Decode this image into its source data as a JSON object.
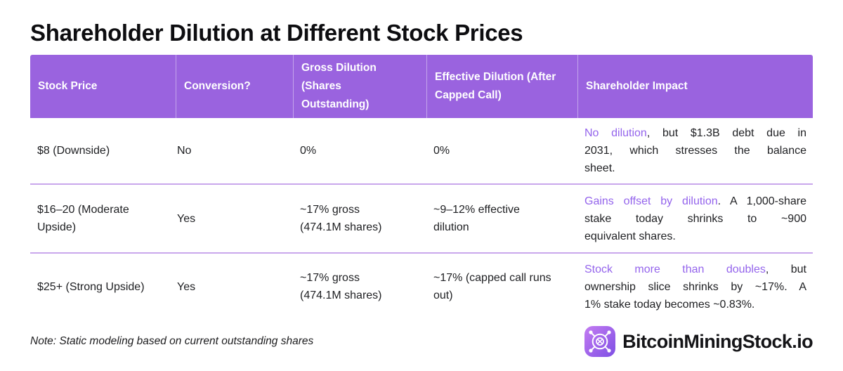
{
  "title": "Shareholder Dilution at Different Stock Prices",
  "theme": {
    "header_bg": "#9a63df",
    "accent_text": "#9464ec",
    "row_divider": "#c9a7ec",
    "logo_gradient_start": "#c47cf2",
    "logo_gradient_end": "#7e4fe4"
  },
  "table": {
    "columns": [
      {
        "label": "Stock Price"
      },
      {
        "label": "Conversion?"
      },
      {
        "label": "Gross Dilution\n(Shares\nOutstanding)"
      },
      {
        "label": "Effective Dilution (After\nCapped Call)"
      },
      {
        "label": "Shareholder Impact"
      }
    ],
    "rows": [
      {
        "stock_price": "$8 (Downside)",
        "conversion": "No",
        "gross_dilution": "0%",
        "effective_dilution": "0%",
        "impact": {
          "lead": "No dilution",
          "lines": [
            "No dilution, but $1.3B debt due in",
            "2031, which stresses the balance",
            "sheet."
          ]
        }
      },
      {
        "stock_price": "$16–20 (Moderate\nUpside)",
        "conversion": "Yes",
        "gross_dilution": "~17% gross\n(474.1M shares)",
        "effective_dilution": "~9–12% effective\ndilution",
        "impact": {
          "lead": "Gains offset by dilution",
          "lines": [
            "Gains offset by dilution. A 1,000-share",
            "stake today shrinks to ~900",
            "equivalent shares."
          ]
        }
      },
      {
        "stock_price": "$25+ (Strong Upside)",
        "conversion": "Yes",
        "gross_dilution": "~17% gross\n(474.1M shares)",
        "effective_dilution": "~17% (capped call runs\nout)",
        "impact": {
          "lead": "Stock more than doubles",
          "lines": [
            "Stock more than doubles, but",
            "ownership slice shrinks by ~17%. A",
            "1% stake today becomes ~0.83%."
          ]
        }
      }
    ]
  },
  "footer": {
    "note": "Note: Static modeling based on current outstanding shares",
    "brand": "BitcoinMiningStock.io",
    "logo_icon": "mining-fan-icon"
  },
  "chart_data": {
    "type": "table",
    "title": "Shareholder Dilution at Different Stock Prices",
    "columns": [
      "Stock Price",
      "Conversion?",
      "Gross Dilution (Shares Outstanding)",
      "Effective Dilution (After Capped Call)",
      "Shareholder Impact"
    ],
    "rows": [
      [
        "$8 (Downside)",
        "No",
        "0%",
        "0%",
        "No dilution, but $1.3B debt due in 2031, which stresses the balance sheet."
      ],
      [
        "$16–20 (Moderate Upside)",
        "Yes",
        "~17% gross (474.1M shares)",
        "~9–12% effective dilution",
        "Gains offset by dilution. A 1,000-share stake today shrinks to ~900 equivalent shares."
      ],
      [
        "$25+ (Strong Upside)",
        "Yes",
        "~17% gross (474.1M shares)",
        "~17% (capped call runs out)",
        "Stock more than doubles, but ownership slice shrinks by ~17%. A 1% stake today becomes ~0.83%."
      ]
    ],
    "note": "Note: Static modeling based on current outstanding shares"
  }
}
